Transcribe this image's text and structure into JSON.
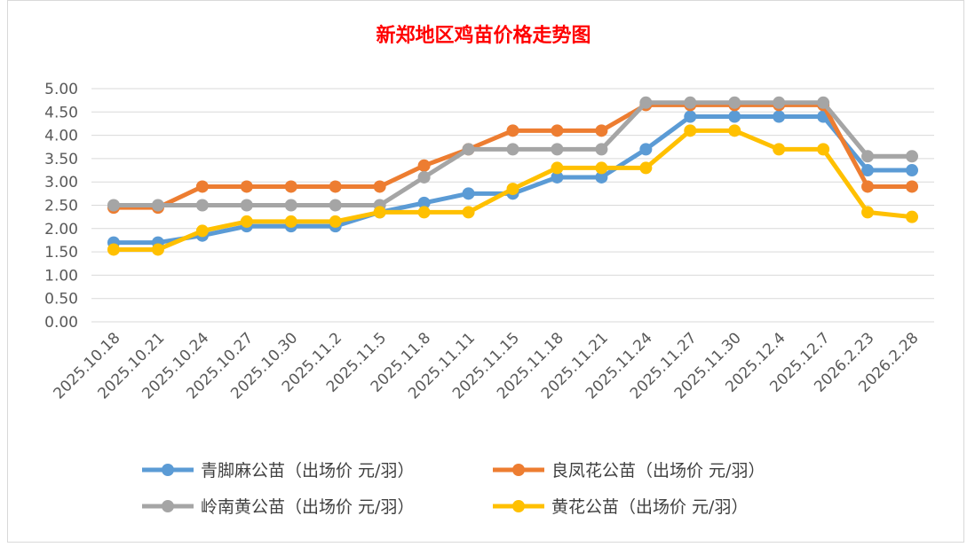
{
  "chart_data": {
    "type": "line",
    "title": "新郑地区鸡苗价格走势图",
    "title_color": "#ff0000",
    "xlabel": "",
    "ylabel": "",
    "ylim": [
      0,
      5
    ],
    "y_ticks": [
      "0.00",
      "0.50",
      "1.00",
      "1.50",
      "2.00",
      "2.50",
      "3.00",
      "3.50",
      "4.00",
      "4.50",
      "5.00"
    ],
    "grid": true,
    "legend_position": "bottom",
    "categories": [
      "2025.10.18",
      "2025.10.21",
      "2025.10.24",
      "2025.10.27",
      "2025.10.30",
      "2025.11.2",
      "2025.11.5",
      "2025.11.8",
      "2025.11.11",
      "2025.11.15",
      "2025.11.18",
      "2025.11.21",
      "2025.11.24",
      "2025.11.27",
      "2025.11.30",
      "2025.12.4",
      "2025.12.7",
      "2026.2.23",
      "2026.2.28"
    ],
    "series": [
      {
        "name": "青脚麻公苗（出场价 元/羽）",
        "color": "#5b9bd5",
        "values": [
          1.7,
          1.7,
          1.85,
          2.05,
          2.05,
          2.05,
          2.35,
          2.55,
          2.75,
          2.75,
          3.1,
          3.1,
          3.7,
          4.4,
          4.4,
          4.4,
          4.4,
          3.25,
          3.25
        ]
      },
      {
        "name": "良凤花公苗（出场价 元/羽）",
        "color": "#ed7d31",
        "values": [
          2.45,
          2.45,
          2.9,
          2.9,
          2.9,
          2.9,
          2.9,
          3.35,
          3.7,
          4.1,
          4.1,
          4.1,
          4.65,
          4.65,
          4.65,
          4.65,
          4.65,
          2.9,
          2.9
        ]
      },
      {
        "name": "岭南黄公苗（出场价 元/羽）",
        "color": "#a5a5a5",
        "values": [
          2.5,
          2.5,
          2.5,
          2.5,
          2.5,
          2.5,
          2.5,
          3.1,
          3.7,
          3.7,
          3.7,
          3.7,
          4.7,
          4.7,
          4.7,
          4.7,
          4.7,
          3.55,
          3.55
        ]
      },
      {
        "name": "黄花公苗（出场价 元/羽）",
        "color": "#ffc000",
        "values": [
          1.55,
          1.55,
          1.95,
          2.15,
          2.15,
          2.15,
          2.35,
          2.35,
          2.35,
          2.85,
          3.3,
          3.3,
          3.3,
          4.1,
          4.1,
          3.7,
          3.7,
          2.35,
          2.25
        ]
      }
    ]
  }
}
